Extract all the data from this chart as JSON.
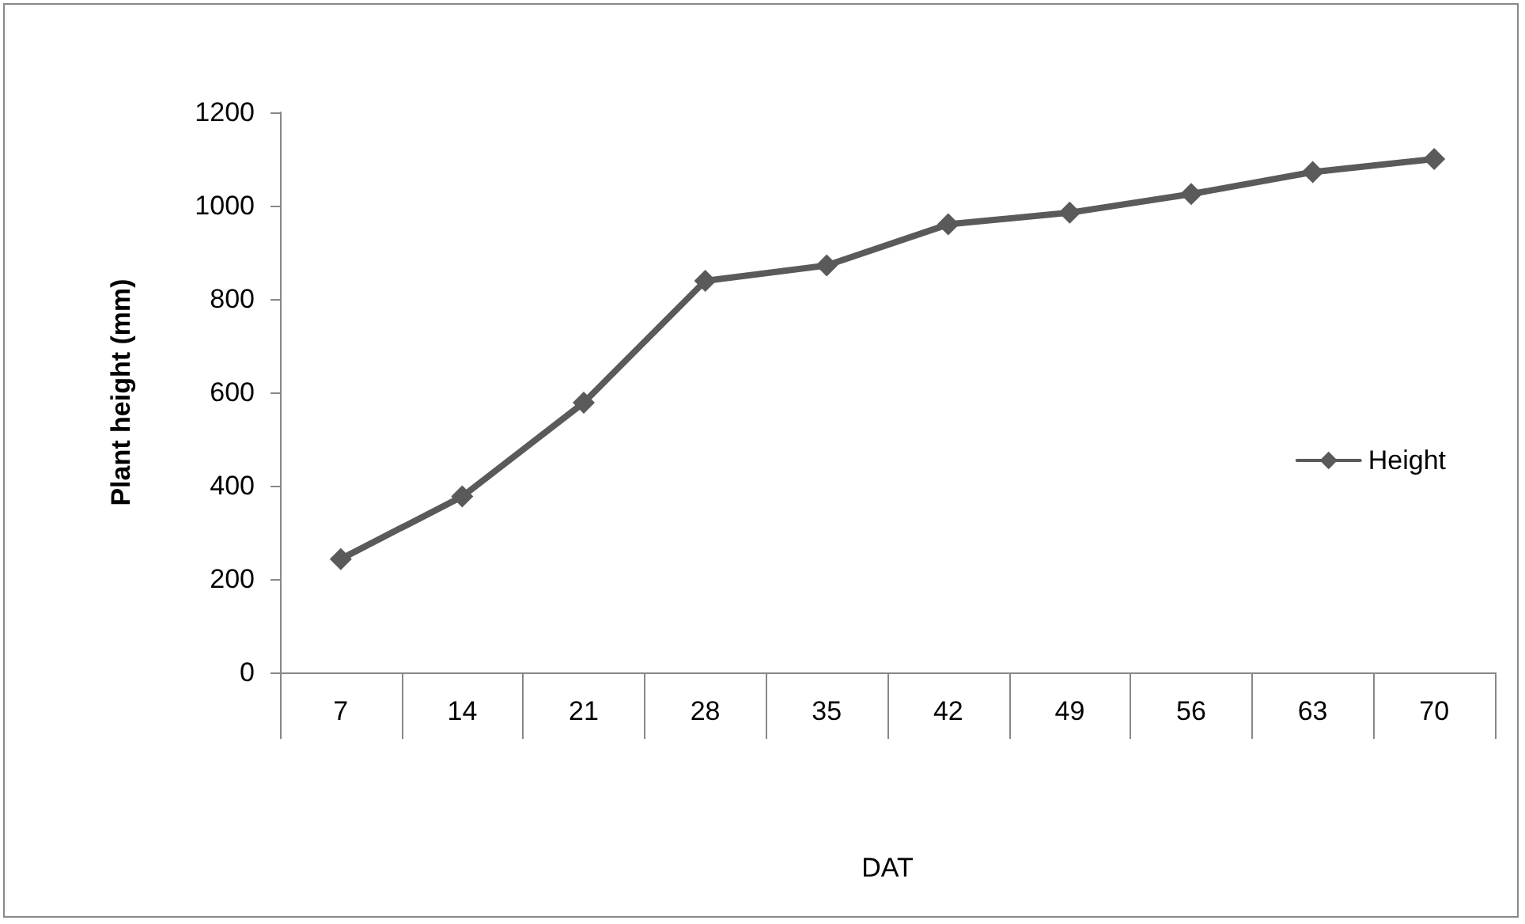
{
  "chart_data": {
    "type": "line",
    "xlabel": "DAT",
    "ylabel": "Plant height (mm)",
    "categories": [
      "7",
      "14",
      "21",
      "28",
      "35",
      "42",
      "49",
      "56",
      "63",
      "70"
    ],
    "series": [
      {
        "name": "Height",
        "color": "#5a5a5a",
        "values": [
          243,
          377,
          578,
          839,
          872,
          960,
          985,
          1025,
          1072,
          1100
        ]
      }
    ],
    "ylim": [
      0,
      1200
    ],
    "yticks": [
      0,
      200,
      400,
      600,
      800,
      1000,
      1200
    ],
    "grid": false,
    "legend": "right",
    "marker": "diamond",
    "line_style": "solid"
  }
}
